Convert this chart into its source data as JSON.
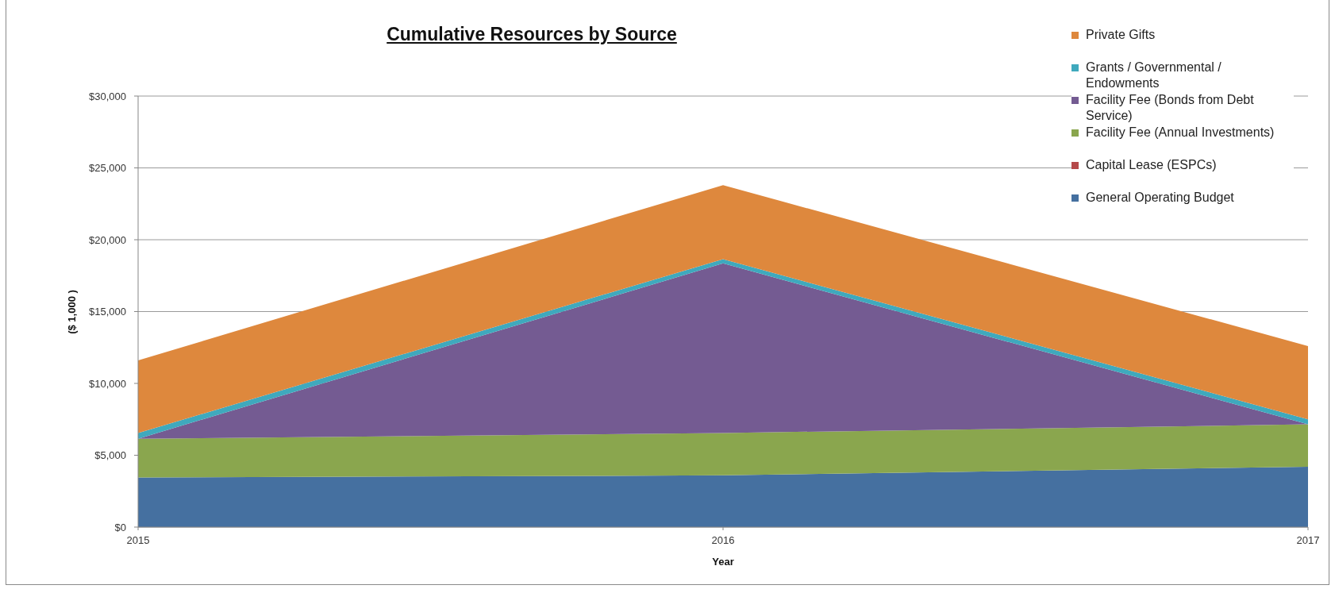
{
  "chart_data": {
    "type": "area",
    "title": "Cumulative Resources by Source",
    "xlabel": "Year",
    "ylabel": "($ 1,000 )",
    "categories": [
      "2015",
      "2016",
      "2017"
    ],
    "series": [
      {
        "name": "General Operating Budget",
        "color": "#4570a0",
        "values": [
          3450,
          3600,
          4200
        ]
      },
      {
        "name": "Capital Lease (ESPCs)",
        "color": "#b5494a",
        "values": [
          null,
          null,
          null
        ]
      },
      {
        "name": "Facility Fee (Annual Investments)",
        "color": "#8aa64e",
        "values": [
          2700,
          2950,
          2950
        ]
      },
      {
        "name": "Facility Fee (Bonds from Debt Service)",
        "color": "#745b92",
        "values": [
          0,
          11800,
          0
        ]
      },
      {
        "name": "Grants / Governmental / Endowments",
        "color": "#3fa9bd",
        "values": [
          400,
          300,
          350
        ]
      },
      {
        "name": "Private Gifts",
        "color": "#de883d",
        "values": [
          5050,
          5150,
          5100
        ]
      }
    ],
    "stacked": true,
    "ylim": [
      0,
      30000
    ],
    "yticks": [
      {
        "value": 0,
        "label": "$0"
      },
      {
        "value": 5000,
        "label": "$5,000"
      },
      {
        "value": 10000,
        "label": "$10,000"
      },
      {
        "value": 15000,
        "label": "$15,000"
      },
      {
        "value": 20000,
        "label": "$20,000"
      },
      {
        "value": 25000,
        "label": "$25,000"
      },
      {
        "value": 30000,
        "label": "$30,000"
      }
    ],
    "grid": "y",
    "legend": "top right"
  }
}
